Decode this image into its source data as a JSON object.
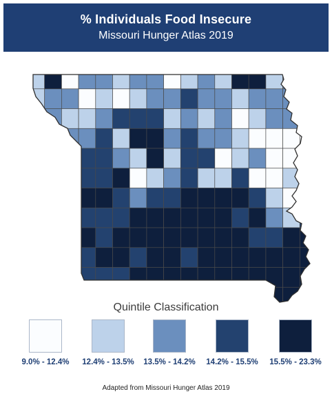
{
  "header": {
    "title": "% Individuals Food Insecure",
    "subtitle": "Missouri Hunger Atlas 2019"
  },
  "legend": {
    "title": "Quintile Classification",
    "classes": [
      {
        "label": "9.0% - 12.4%",
        "color": "#fbfdff"
      },
      {
        "label": "12.4% - 13.5%",
        "color": "#bdd2ea"
      },
      {
        "label": "13.5% - 14.2%",
        "color": "#6b8fbe"
      },
      {
        "label": "14.2% - 15.5%",
        "color": "#23426f"
      },
      {
        "label": "15.5% - 23.3%",
        "color": "#0e1f3d"
      }
    ]
  },
  "credit": "Adapted from Missouri Hunger Atlas 2019"
}
